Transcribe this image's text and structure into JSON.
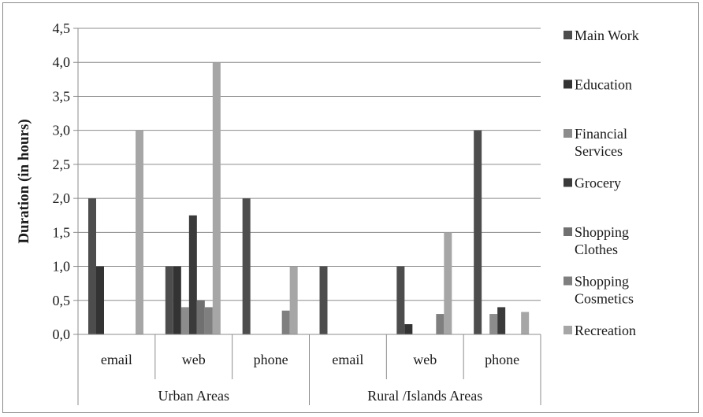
{
  "chart_data": {
    "type": "bar",
    "title": "",
    "xlabel": "",
    "ylabel": "Duration (in hours)",
    "ylim": [
      0,
      4.5
    ],
    "yticks": [
      "0,0",
      "0,5",
      "1,0",
      "1,5",
      "2,0",
      "2,5",
      "3,0",
      "3,5",
      "4,0",
      "4,5"
    ],
    "tick_values": [
      0,
      0.5,
      1,
      1.5,
      2,
      2.5,
      3,
      3.5,
      4,
      4.5
    ],
    "grid": true,
    "legend_position": "right",
    "groups": [
      {
        "label": "Urban Areas",
        "categories": [
          "email",
          "web",
          "phone"
        ]
      },
      {
        "label": "Rural /Islands Areas",
        "categories": [
          "email",
          "web",
          "phone"
        ]
      }
    ],
    "categories": [
      "email",
      "web",
      "phone",
      "email",
      "web",
      "phone"
    ],
    "series": [
      {
        "name": "Main Work",
        "color": "#4d4d4d",
        "values": [
          2.0,
          1.0,
          2.0,
          1.0,
          1.0,
          3.0
        ]
      },
      {
        "name": "Education",
        "color": "#333333",
        "values": [
          1.0,
          1.0,
          0,
          0,
          0.15,
          0
        ]
      },
      {
        "name": "Financial Services",
        "color": "#8c8c8c",
        "values": [
          0,
          0.4,
          0,
          0,
          0,
          0.3
        ]
      },
      {
        "name": "Grocery",
        "color": "#3a3a3a",
        "values": [
          0,
          1.75,
          0,
          0,
          0,
          0.4
        ]
      },
      {
        "name": "Shopping Clothes",
        "color": "#707070",
        "values": [
          0,
          0.5,
          0,
          0,
          0,
          0
        ]
      },
      {
        "name": "Shopping Cosmetics",
        "color": "#7f7f7f",
        "values": [
          0,
          0.4,
          0.35,
          0,
          0.3,
          0
        ]
      },
      {
        "name": "Recreation",
        "color": "#a6a6a6",
        "values": [
          3.0,
          4.0,
          1.0,
          0,
          1.5,
          0.33
        ]
      }
    ],
    "legend": [
      {
        "lines": [
          "Main Work"
        ]
      },
      {
        "lines": [
          "Education"
        ]
      },
      {
        "lines": [
          "Financial",
          "Services"
        ]
      },
      {
        "lines": [
          "Grocery"
        ]
      },
      {
        "lines": [
          "Shopping",
          "Clothes"
        ]
      },
      {
        "lines": [
          "Shopping",
          "Cosmetics"
        ]
      },
      {
        "lines": [
          "Recreation"
        ]
      }
    ]
  }
}
